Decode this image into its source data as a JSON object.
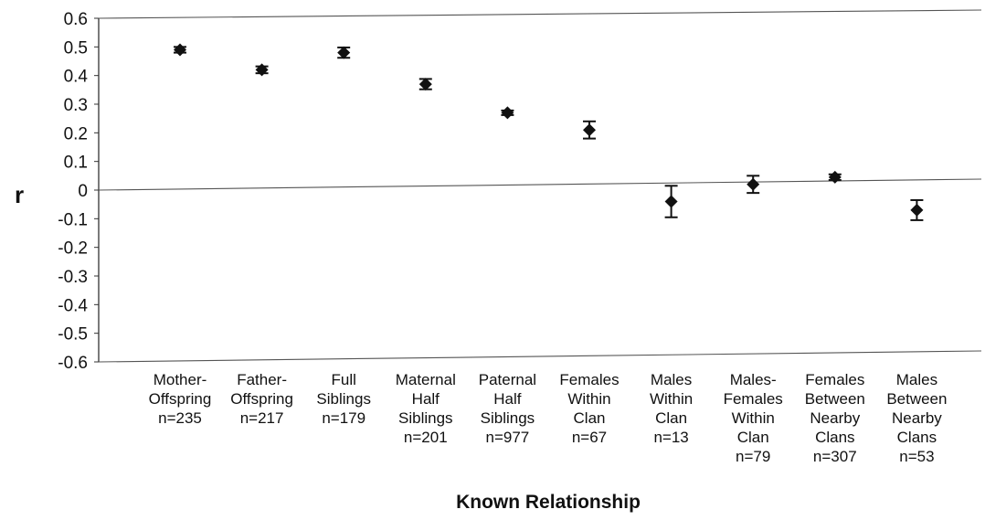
{
  "chart_data": {
    "type": "scatter",
    "title": "",
    "xlabel": "Known Relationship",
    "ylabel": "r",
    "ylim": [
      -0.6,
      0.6
    ],
    "yticks": [
      "0.6",
      "0.5",
      "0.4",
      "0.3",
      "0.2",
      "0.1",
      "0",
      "-0.1",
      "-0.2",
      "-0.3",
      "-0.4",
      "-0.5",
      "-0.6"
    ],
    "grid": false,
    "legend": "none",
    "marker": "diamond",
    "error_bars": true,
    "categories": [
      {
        "label": [
          "Mother-",
          "Offspring",
          "n=235"
        ]
      },
      {
        "label": [
          "Father-",
          "Offspring",
          "n=217"
        ]
      },
      {
        "label": [
          "Full",
          "Siblings",
          "n=179"
        ]
      },
      {
        "label": [
          "Maternal",
          "Half",
          "Siblings",
          "n=201"
        ]
      },
      {
        "label": [
          "Paternal",
          "Half",
          "Siblings",
          "n=977"
        ]
      },
      {
        "label": [
          "Females",
          "Within",
          "Clan",
          "n=67"
        ]
      },
      {
        "label": [
          "Males",
          "Within",
          "Clan",
          "n=13"
        ]
      },
      {
        "label": [
          "Males-",
          "Females",
          "Within",
          "Clan",
          "n=79"
        ]
      },
      {
        "label": [
          "Females",
          "Between",
          "Nearby",
          "Clans",
          "n=307"
        ]
      },
      {
        "label": [
          "Males",
          "Between",
          "Nearby",
          "Clans",
          "n=53"
        ]
      }
    ],
    "values": [
      0.49,
      0.42,
      0.48,
      0.37,
      0.27,
      0.21,
      -0.04,
      0.02,
      0.045,
      -0.07
    ],
    "errors": [
      0.01,
      0.012,
      0.018,
      0.018,
      0.008,
      0.03,
      0.055,
      0.03,
      0.01,
      0.035
    ]
  }
}
